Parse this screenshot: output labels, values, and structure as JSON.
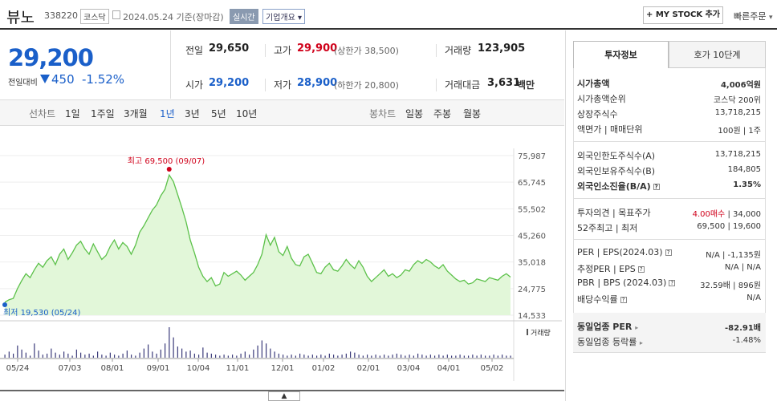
{
  "header": {
    "stock_name": "뷰노",
    "stock_code": "338220",
    "market": "코스닥",
    "date": "2024.05.24 기준(장마감)",
    "realtime": "실시간",
    "corp_overview": "기업개요",
    "my_stock": "+ MY STOCK 추가",
    "quick_order": "빠른주문"
  },
  "price": {
    "current": "29,200",
    "change_label": "전일대비",
    "change": "450",
    "change_pct": "-1.52%"
  },
  "quote": {
    "prev_label": "전일",
    "prev": "29,650",
    "high_label": "고가",
    "high": "29,900",
    "upper_limit": "(상한가 38,500)",
    "volume_label": "거래량",
    "volume": "123,905",
    "open_label": "시가",
    "open": "29,200",
    "low_label": "저가",
    "low": "28,900",
    "lower_limit": "(하한가 20,800)",
    "amount_label": "거래대금",
    "amount": "3,631",
    "amount_unit": "백만"
  },
  "tabs": {
    "line_label": "선차트",
    "periods": [
      "1일",
      "1주일",
      "3개월",
      "1년",
      "3년",
      "5년",
      "10년"
    ],
    "active": "1년",
    "candle_label": "봉차트",
    "candles": [
      "일봉",
      "주봉",
      "월봉"
    ]
  },
  "chart_data": {
    "type": "area",
    "y_ticks": [
      "75,987",
      "65,745",
      "55,502",
      "45,260",
      "35,018",
      "24,775",
      "14,533"
    ],
    "ylim": [
      14533,
      75987
    ],
    "x_ticks": [
      "05/24",
      "07/03",
      "08/01",
      "09/01",
      "10/04",
      "11/01",
      "12/01",
      "01/02",
      "02/01",
      "03/04",
      "04/01",
      "05/02"
    ],
    "high_label": "최고 69,500 (09/07)",
    "low_label": "최저 19,530 (05/24)",
    "volume_label": "거래량",
    "values": [
      19530,
      20500,
      21000,
      24800,
      27800,
      30500,
      29000,
      32000,
      34500,
      33000,
      35500,
      37000,
      34000,
      38000,
      40000,
      36000,
      38500,
      41500,
      43000,
      40000,
      38000,
      42000,
      39000,
      36000,
      37500,
      41000,
      43500,
      40000,
      42500,
      41000,
      38000,
      41500,
      46500,
      49000,
      52000,
      55000,
      57000,
      60500,
      63000,
      68500,
      66000,
      61000,
      56000,
      50500,
      43500,
      38500,
      33000,
      29500,
      27500,
      29000,
      25800,
      26500,
      31000,
      29500,
      30500,
      31500,
      30000,
      28000,
      29500,
      31000,
      34000,
      38000,
      45500,
      41500,
      44500,
      39000,
      37500,
      41000,
      36500,
      34000,
      33500,
      37000,
      38000,
      34500,
      31000,
      30500,
      33000,
      34500,
      32000,
      31500,
      33500,
      36000,
      34000,
      32500,
      35500,
      33000,
      29500,
      27500,
      29000,
      30500,
      32000,
      29500,
      30500,
      29000,
      30000,
      32000,
      31500,
      34000,
      35500,
      34500,
      36000,
      35000,
      33500,
      32500,
      34000,
      31500,
      30000,
      28500,
      27500,
      28000,
      26500,
      27000,
      28500,
      28000,
      27500,
      29000,
      28500,
      28000,
      29500,
      30500,
      29200
    ],
    "volume": [
      3,
      6,
      4,
      12,
      8,
      5,
      2,
      14,
      7,
      3,
      4,
      9,
      5,
      3,
      6,
      4,
      2,
      8,
      5,
      3,
      4,
      2,
      6,
      3,
      2,
      5,
      3,
      2,
      4,
      7,
      3,
      2,
      5,
      9,
      13,
      6,
      4,
      8,
      14,
      30,
      20,
      11,
      9,
      6,
      7,
      4,
      3,
      10,
      5,
      4,
      3,
      2,
      3,
      2,
      3,
      2,
      4,
      6,
      3,
      8,
      12,
      17,
      14,
      9,
      6,
      4,
      3,
      2,
      3,
      2,
      4,
      3,
      2,
      3,
      2,
      3,
      2,
      4,
      3,
      2,
      3,
      4,
      6,
      5,
      3,
      2,
      3,
      2,
      3,
      2,
      3,
      2,
      3,
      4,
      3,
      2,
      3,
      2,
      4,
      3,
      2,
      3,
      2,
      3,
      2,
      3,
      2,
      2,
      3,
      2,
      2,
      3,
      2,
      3,
      2,
      2,
      3,
      2,
      3,
      2,
      2
    ],
    "color_line": "#5cc14a",
    "color_fill": "#e2f7d9",
    "color_high": "#d0021b",
    "color_low": "#1a5fc9"
  },
  "panel": {
    "tab_invest": "투자정보",
    "tab_orderbook": "호가 10단계",
    "market_cap_label": "시가총액",
    "market_cap": "4,006억원",
    "rank_label": "시가총액순위",
    "rank": "코스닥 200위",
    "shares_label": "상장주식수",
    "shares": "13,718,215",
    "par_label": "액면가 | 매매단위",
    "par": "100원 | 1주",
    "foreign_limit_label": "외국인한도주식수(A)",
    "foreign_limit": "13,718,215",
    "foreign_hold_label": "외국인보유주식수(B)",
    "foreign_hold": "184,805",
    "foreign_ratio_label": "외국인소진율(B/A)",
    "foreign_ratio": "1.35%",
    "opinion_label": "투자의견 | 목표주가",
    "opinion": "4.00매수",
    "target": "| 34,000",
    "week52_label": "52주최고 | 최저",
    "week52": "69,500 | 19,600",
    "per_label": "PER | EPS(2024.03)",
    "per": "N/A | -1,135원",
    "est_per_label": "추정PER | EPS",
    "est_per": "N/A | N/A",
    "pbr_label": "PBR | BPS (2024.03)",
    "pbr": "32.59배 | 896원",
    "div_label": "배당수익률",
    "div": "N/A",
    "sector_per_label": "동일업종 PER",
    "sector_per": "-82.91배",
    "sector_rate_label": "동일업종 등락률",
    "sector_rate": "-1.48%"
  }
}
